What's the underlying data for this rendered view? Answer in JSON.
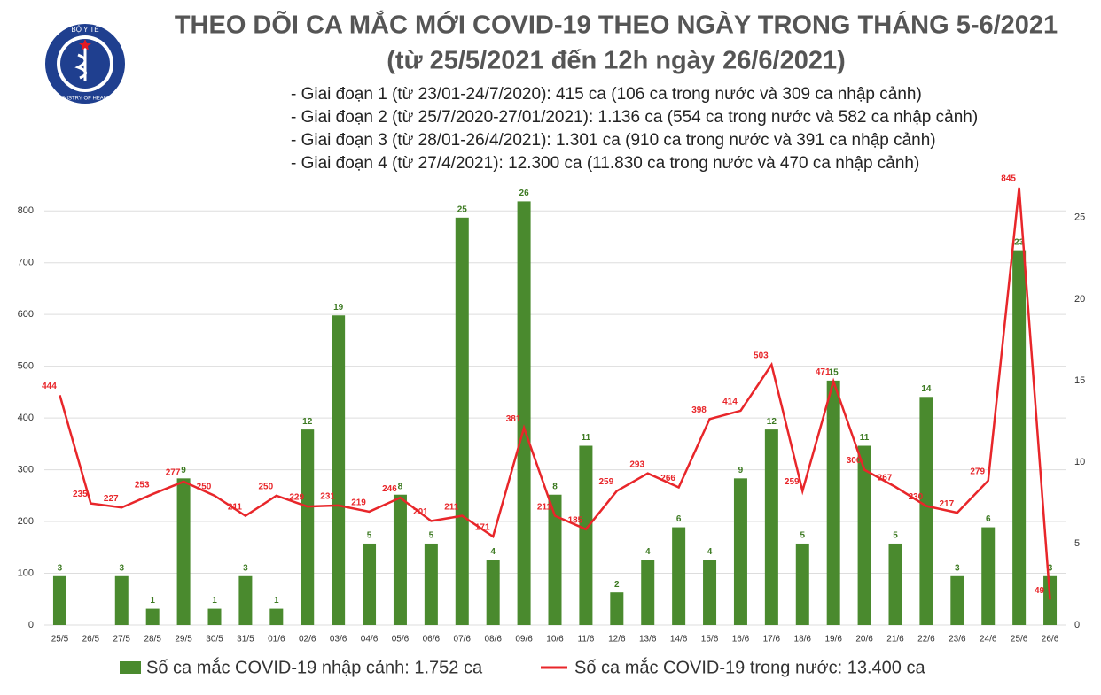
{
  "logo": {
    "top_text": "BỘ Y TẾ",
    "bottom_text": "MINISTRY OF HEALTH"
  },
  "chart_data": {
    "type": "combo",
    "title": "THEO DÕI CA MẮC MỚI COVID-19 THEO NGÀY TRONG THÁNG 5-6/2021",
    "subtitle": "(từ 25/5/2021 đến 12h ngày 26/6/2021)",
    "annotations": [
      "- Giai đoạn 1 (từ 23/01-24/7/2020): 415 ca (106 ca trong nước và 309 ca nhập cảnh)",
      "- Giai đoạn 2 (từ 25/7/2020-27/01/2021): 1.136 ca (554 ca trong nước và 582 ca nhập cảnh)",
      "- Giai đoạn 3 (từ 28/01-26/4/2021): 1.301 ca (910 ca trong nước và 391 ca nhập cảnh)",
      "- Giai đoạn 4 (từ 27/4/2021): 12.300 ca (11.830 ca trong nước và 470 ca nhập cảnh)"
    ],
    "categories": [
      "25/5",
      "26/5",
      "27/5",
      "28/5",
      "29/5",
      "30/5",
      "31/5",
      "01/6",
      "02/6",
      "03/6",
      "04/6",
      "05/6",
      "06/6",
      "07/6",
      "08/6",
      "09/6",
      "10/6",
      "11/6",
      "12/6",
      "13/6",
      "14/6",
      "15/6",
      "16/6",
      "17/6",
      "18/6",
      "19/6",
      "20/6",
      "21/6",
      "22/6",
      "23/6",
      "24/6",
      "25/6",
      "26/6"
    ],
    "series": [
      {
        "name": "Số ca mắc COVID-19 nhập cảnh: 1.752 ca",
        "type": "bar",
        "axis": "y2",
        "color": "#4a8a2e",
        "values": [
          3,
          null,
          3,
          1,
          9,
          1,
          3,
          1,
          12,
          19,
          5,
          8,
          5,
          25,
          4,
          26,
          8,
          11,
          2,
          4,
          6,
          4,
          9,
          12,
          5,
          15,
          11,
          5,
          14,
          3,
          6,
          23,
          3
        ]
      },
      {
        "name": "Số ca mắc COVID-19 trong nước: 13.400 ca",
        "type": "line",
        "color": "#e8262a",
        "values": [
          444,
          235,
          227,
          253,
          277,
          250,
          211,
          250,
          229,
          231,
          219,
          246,
          201,
          211,
          171,
          381,
          211,
          185,
          259,
          293,
          266,
          398,
          414,
          503,
          259,
          471,
          300,
          267,
          230,
          217,
          279,
          845,
          49
        ]
      }
    ],
    "ylim": [
      0,
      850
    ],
    "yticks": [
      0,
      100,
      200,
      300,
      400,
      500,
      600,
      700,
      800
    ],
    "y2lim": [
      0,
      27
    ],
    "y2ticks": [
      0,
      5,
      10,
      15,
      20,
      25
    ],
    "grid": true
  }
}
